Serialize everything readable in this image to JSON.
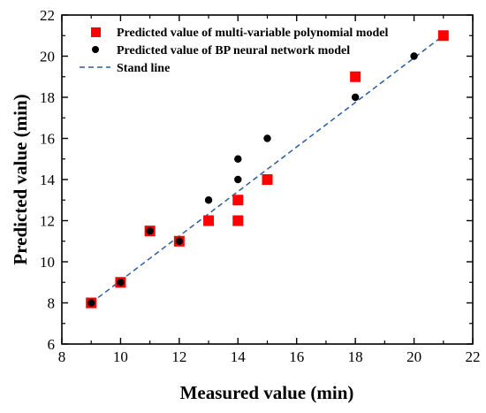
{
  "chart_data": {
    "type": "scatter",
    "title": "",
    "xlabel": "Measured value (min)",
    "ylabel": "Predicted value (min)",
    "xlim": [
      8,
      22
    ],
    "ylim": [
      6,
      22
    ],
    "x_ticks": [
      8,
      10,
      12,
      14,
      16,
      18,
      20,
      22
    ],
    "y_ticks": [
      6,
      8,
      10,
      12,
      14,
      16,
      18,
      20,
      22
    ],
    "grid": false,
    "legend_position": "top-left",
    "series": [
      {
        "name": "Predicted value of multi-variable polynomial model",
        "marker": "square",
        "color": "#ff0000",
        "points": [
          [
            9,
            8
          ],
          [
            10,
            9
          ],
          [
            11,
            11.5
          ],
          [
            12,
            11
          ],
          [
            13,
            12
          ],
          [
            14,
            13
          ],
          [
            14,
            12
          ],
          [
            15,
            14
          ],
          [
            18,
            19
          ],
          [
            21,
            21
          ]
        ]
      },
      {
        "name": "Predicted value of BP neural network model",
        "marker": "circle",
        "color": "#000000",
        "points": [
          [
            9,
            8
          ],
          [
            10,
            9
          ],
          [
            11,
            11.5
          ],
          [
            12,
            11
          ],
          [
            13,
            13
          ],
          [
            14,
            15
          ],
          [
            14,
            14
          ],
          [
            15,
            16
          ],
          [
            18,
            18
          ],
          [
            20,
            20
          ]
        ]
      },
      {
        "name": "Stand line",
        "marker": "dashed-line",
        "color": "#2a5d9f",
        "points": [
          [
            9,
            8
          ],
          [
            21,
            21
          ]
        ]
      }
    ]
  }
}
